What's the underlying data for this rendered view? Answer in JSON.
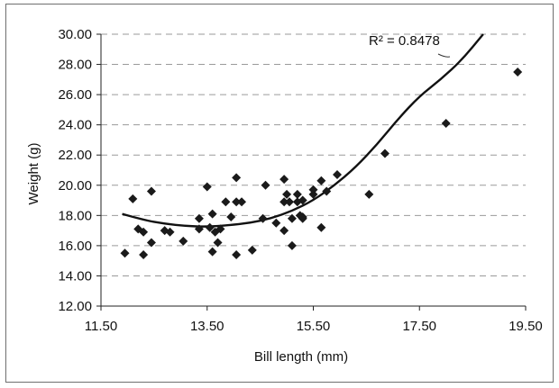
{
  "chart_data": {
    "type": "scatter",
    "title": "",
    "xlabel": "Bill length (mm)",
    "ylabel": "Weight (g)",
    "xlim": [
      11.5,
      19.5
    ],
    "ylim": [
      12.0,
      30.0
    ],
    "x_ticks": [
      "11.50",
      "13.50",
      "15.50",
      "17.50",
      "19.50"
    ],
    "x_tick_values": [
      11.5,
      13.5,
      15.5,
      17.5,
      19.5
    ],
    "y_ticks": [
      "12.00",
      "14.00",
      "16.00",
      "18.00",
      "20.00",
      "22.00",
      "24.00",
      "26.00",
      "28.00",
      "30.00"
    ],
    "y_tick_values": [
      12,
      14,
      16,
      18,
      20,
      22,
      24,
      26,
      28,
      30
    ],
    "grid": "horizontal dashed",
    "marker": "diamond",
    "marker_color": "#1a1a1a",
    "points": [
      [
        11.95,
        15.5
      ],
      [
        12.1,
        19.1
      ],
      [
        12.2,
        17.1
      ],
      [
        12.3,
        16.9
      ],
      [
        12.3,
        15.4
      ],
      [
        12.45,
        16.2
      ],
      [
        12.45,
        19.6
      ],
      [
        12.7,
        17.0
      ],
      [
        12.8,
        16.9
      ],
      [
        13.05,
        16.3
      ],
      [
        13.35,
        17.8
      ],
      [
        13.35,
        17.1
      ],
      [
        13.5,
        19.9
      ],
      [
        13.55,
        17.2
      ],
      [
        13.6,
        15.6
      ],
      [
        13.6,
        18.1
      ],
      [
        13.65,
        16.9
      ],
      [
        13.7,
        16.2
      ],
      [
        13.75,
        17.1
      ],
      [
        13.85,
        18.9
      ],
      [
        13.95,
        17.9
      ],
      [
        14.05,
        18.9
      ],
      [
        14.05,
        20.5
      ],
      [
        14.05,
        15.4
      ],
      [
        14.15,
        18.9
      ],
      [
        14.35,
        15.7
      ],
      [
        14.55,
        17.8
      ],
      [
        14.6,
        20.0
      ],
      [
        14.8,
        17.5
      ],
      [
        14.95,
        18.9
      ],
      [
        14.95,
        20.4
      ],
      [
        14.95,
        17.0
      ],
      [
        15.0,
        19.4
      ],
      [
        15.05,
        18.9
      ],
      [
        15.1,
        16.0
      ],
      [
        15.1,
        17.8
      ],
      [
        15.2,
        18.9
      ],
      [
        15.2,
        19.4
      ],
      [
        15.25,
        18.0
      ],
      [
        15.3,
        17.9
      ],
      [
        15.3,
        19.0
      ],
      [
        15.3,
        17.8
      ],
      [
        15.5,
        19.4
      ],
      [
        15.5,
        19.7
      ],
      [
        15.65,
        17.2
      ],
      [
        15.65,
        20.3
      ],
      [
        15.75,
        19.6
      ],
      [
        15.95,
        20.7
      ],
      [
        16.55,
        19.4
      ],
      [
        16.85,
        22.1
      ],
      [
        18.0,
        24.1
      ],
      [
        19.35,
        27.5
      ]
    ],
    "trendline": {
      "type": "polynomial",
      "annotation": "R² = 0.8478",
      "line_color": "#111111",
      "x": [
        11.9,
        12.3,
        12.7,
        13.1,
        13.5,
        13.9,
        14.3,
        14.7,
        15.1,
        15.5,
        15.9,
        16.3,
        16.7,
        17.1,
        17.5,
        17.9,
        18.3,
        18.7
      ],
      "y": [
        18.1,
        17.7,
        17.45,
        17.3,
        17.25,
        17.35,
        17.5,
        17.8,
        18.3,
        19.0,
        20.0,
        21.2,
        22.7,
        24.4,
        25.9,
        27.0,
        28.3,
        30.0
      ]
    }
  }
}
